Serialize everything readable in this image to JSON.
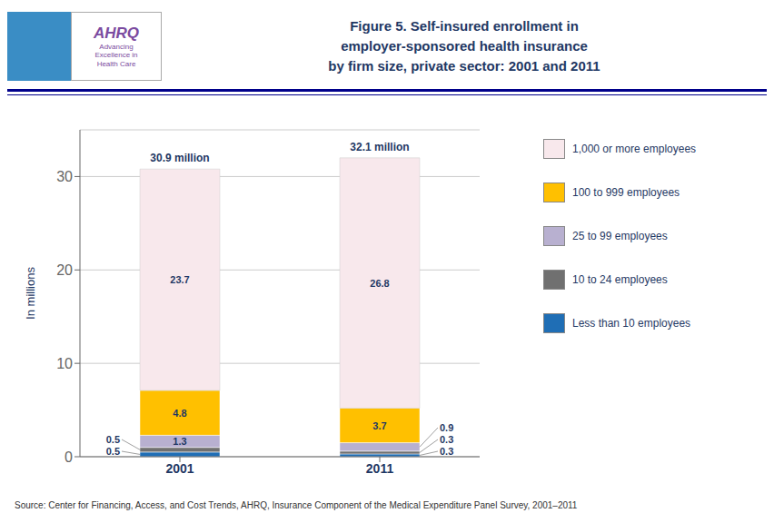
{
  "chart_data": {
    "type": "bar",
    "title": "Figure 5. Self-insured enrollment in\nemployer-sponsored health insurance\nby firm size, private sector: 2001 and 2011",
    "ylabel": "In millions",
    "categories": [
      "2001",
      "2011"
    ],
    "series": [
      {
        "name": "Less than 10 employees",
        "color": "#1F6EB5",
        "values": [
          0.5,
          0.3
        ]
      },
      {
        "name": "10 to 24 employees",
        "color": "#707070",
        "values": [
          0.5,
          0.3
        ]
      },
      {
        "name": "25 to 99 employees",
        "color": "#B8B0D0",
        "values": [
          1.3,
          0.9
        ]
      },
      {
        "name": "100 to 999 employees",
        "color": "#FFC000",
        "values": [
          4.8,
          3.7
        ]
      },
      {
        "name": "1,000 or more employees",
        "color": "#F8E8EC",
        "values": [
          23.7,
          26.8
        ]
      }
    ],
    "stacked": true,
    "data_labels": true,
    "ylim": [
      0,
      35
    ],
    "yticks": [
      0,
      10,
      20,
      30
    ],
    "grid": true,
    "legend": "right",
    "annotations": [
      {
        "text": "30.9  million",
        "category": "2001"
      },
      {
        "text": "32.1  million",
        "category": "2011"
      }
    ],
    "source": "Source: Center for Financing, Access, and Cost Trends, AHRQ, Insurance Component of the Medical Expenditure Panel Survey, 2001–2011",
    "logo": [
      "AHRQ",
      "Advancing\nExcellence in\nHealth Care"
    ]
  }
}
